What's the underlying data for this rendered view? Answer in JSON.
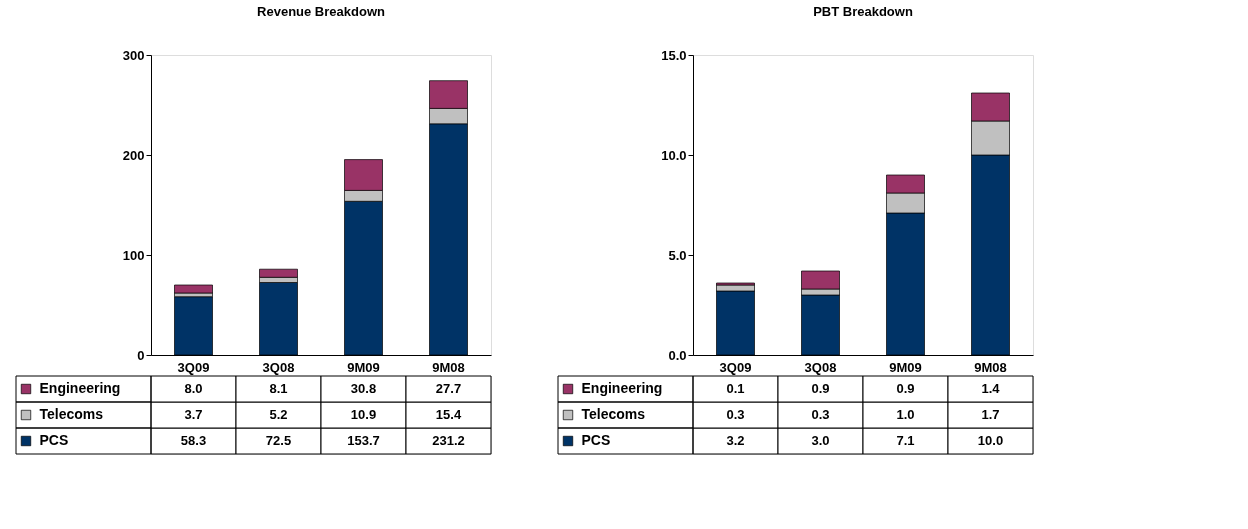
{
  "chart_data": [
    {
      "type": "bar",
      "title": "Revenue Breakdown",
      "categories": [
        "3Q09",
        "3Q08",
        "9M09",
        "9M08"
      ],
      "stacked": true,
      "legend": "bottom",
      "grid": false,
      "ylim": [
        0,
        300
      ],
      "yticks": [
        0,
        100,
        200,
        300
      ],
      "series": [
        {
          "name": "PCS",
          "color": "#003366",
          "values": [
            58.3,
            72.5,
            153.7,
            231.2
          ],
          "value_labels": [
            "58.3",
            "72.5",
            "153.7",
            "231.2"
          ]
        },
        {
          "name": "Telecoms",
          "color": "#c0c0c0",
          "values": [
            3.7,
            5.2,
            10.9,
            15.4
          ],
          "value_labels": [
            "3.7",
            "5.2",
            "10.9",
            "15.4"
          ]
        },
        {
          "name": "Engineering",
          "color": "#993366",
          "values": [
            8.0,
            8.1,
            30.8,
            27.7
          ],
          "value_labels": [
            "8.0",
            "8.1",
            "30.8",
            "27.7"
          ]
        }
      ]
    },
    {
      "type": "bar",
      "title": "PBT Breakdown",
      "categories": [
        "3Q09",
        "3Q08",
        "9M09",
        "9M08"
      ],
      "stacked": true,
      "legend": "bottom",
      "grid": false,
      "ylim": [
        0,
        15
      ],
      "yticks": [
        {
          "value": 0,
          "label": "0.0"
        },
        {
          "value": 5,
          "label": "5.0"
        },
        {
          "value": 10,
          "label": "10.0"
        },
        {
          "value": 15,
          "label": "15.0"
        }
      ],
      "series": [
        {
          "name": "PCS",
          "color": "#003366",
          "values": [
            3.2,
            3.0,
            7.1,
            10.0
          ],
          "value_labels": [
            "3.2",
            "3.0",
            "7.1",
            "10.0"
          ]
        },
        {
          "name": "Telecoms",
          "color": "#c0c0c0",
          "values": [
            0.3,
            0.3,
            1.0,
            1.7
          ],
          "value_labels": [
            "0.3",
            "0.3",
            "1.0",
            "1.7"
          ]
        },
        {
          "name": "Engineering",
          "color": "#993366",
          "values": [
            0.1,
            0.9,
            0.9,
            1.4
          ],
          "value_labels": [
            "0.1",
            "0.9",
            "0.9",
            "1.4"
          ]
        }
      ]
    }
  ]
}
